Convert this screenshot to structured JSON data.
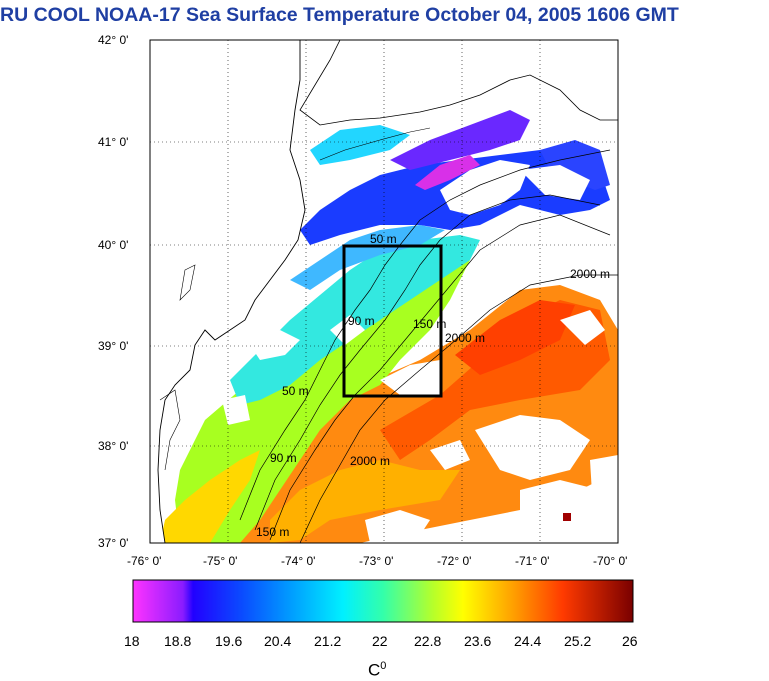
{
  "title": "RU COOL  NOAA-17 Sea Surface Temperature October 04, 2005 1606 GMT",
  "map": {
    "lat_labels": [
      "42° 0'",
      "41° 0'",
      "40° 0'",
      "39° 0'",
      "38° 0'",
      "37° 0'"
    ],
    "lon_labels": [
      "-76° 0'",
      "-75° 0'",
      "-74° 0'",
      "-73° 0'",
      "-72° 0'",
      "-71° 0'",
      "-70° 0'"
    ],
    "lat_range": [
      37,
      42
    ],
    "lon_range": [
      -76,
      -70
    ],
    "isobath_labels": [
      "50 m",
      "90 m",
      "150 m",
      "2000 m"
    ],
    "box": {
      "lon": [
        -73.5,
        -72.3
      ],
      "lat": [
        38.5,
        40.0
      ]
    }
  },
  "colorbar": {
    "ticks": [
      "18",
      "18.8",
      "19.6",
      "20.4",
      "21.2",
      "22",
      "22.8",
      "23.6",
      "24.4",
      "25.2",
      "26"
    ],
    "unit_base": "C",
    "unit_sup": "0",
    "range": [
      18,
      26
    ]
  },
  "colors": {
    "title": "#1f3fa3",
    "land": "#ffffff",
    "cloud": "#ffffff",
    "box": "#000000"
  }
}
